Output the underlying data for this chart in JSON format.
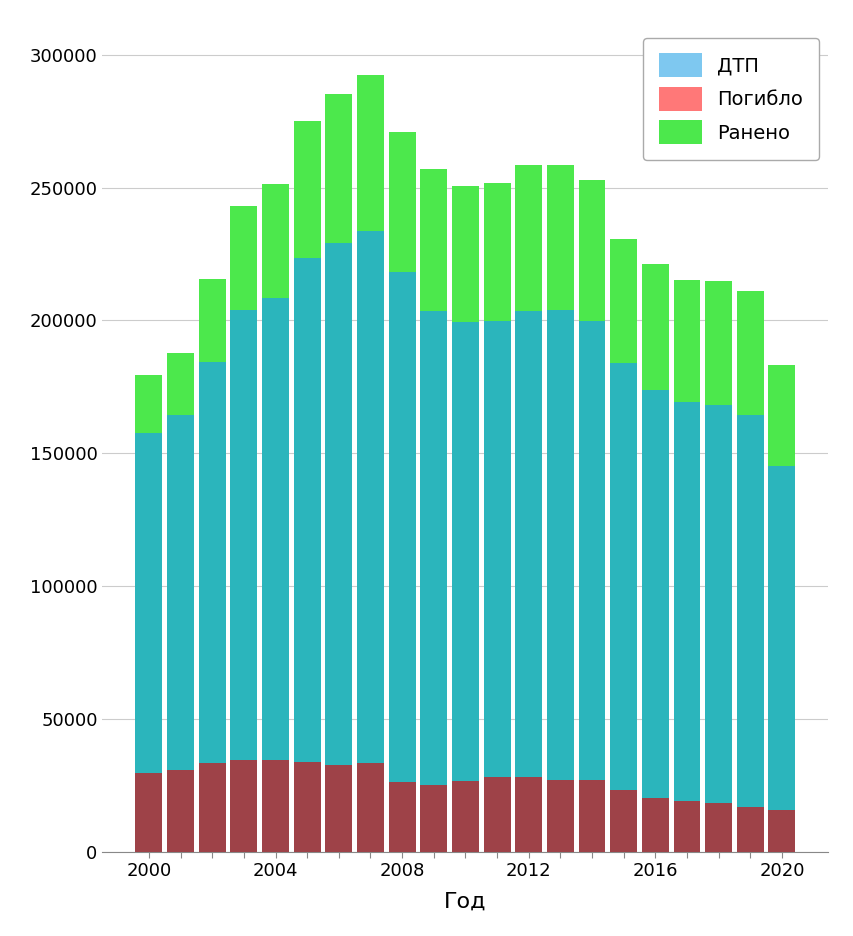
{
  "years": [
    2000,
    2001,
    2002,
    2003,
    2004,
    2005,
    2006,
    2007,
    2008,
    2009,
    2010,
    2011,
    2012,
    2013,
    2014,
    2015,
    2016,
    2017,
    2018,
    2019,
    2020
  ],
  "dtp": [
    157596,
    164403,
    184365,
    204068,
    208558,
    223342,
    229140,
    233809,
    218322,
    203603,
    199431,
    199868,
    203597,
    204068,
    199720,
    184000,
    173694,
    169432,
    168099,
    164358,
    145073
  ],
  "pogiblo": [
    29594,
    30916,
    33243,
    34506,
    34506,
    33957,
    32724,
    33308,
    26304,
    25266,
    26567,
    27953,
    27953,
    27025,
    26963,
    23114,
    20308,
    19088,
    18214,
    16981,
    15564
  ],
  "raneno": [
    179401,
    187790,
    215678,
    243096,
    251386,
    274864,
    285022,
    292206,
    270883,
    257034,
    250635,
    251848,
    258618,
    258437,
    252784,
    230547,
    221140,
    215374,
    214853,
    210877,
    183040
  ],
  "color_dtp_bar": "#2BB5BC",
  "color_pogiblo_bar": "#9E4248",
  "color_raneno_bar": "#4CE84C",
  "color_dtp_legend": "#7EC8F0",
  "color_pogiblo_legend": "#FF7878",
  "color_raneno_legend": "#4CE84C",
  "xlabel": "Год",
  "legend_labels": [
    "ДТП",
    "Погибло",
    "Ранено"
  ],
  "ylim": [
    0,
    310000
  ],
  "yticks": [
    0,
    50000,
    100000,
    150000,
    200000,
    250000,
    300000
  ],
  "background_color": "#FFFFFF",
  "grid_color": "#CCCCCC",
  "bar_width": 0.85
}
